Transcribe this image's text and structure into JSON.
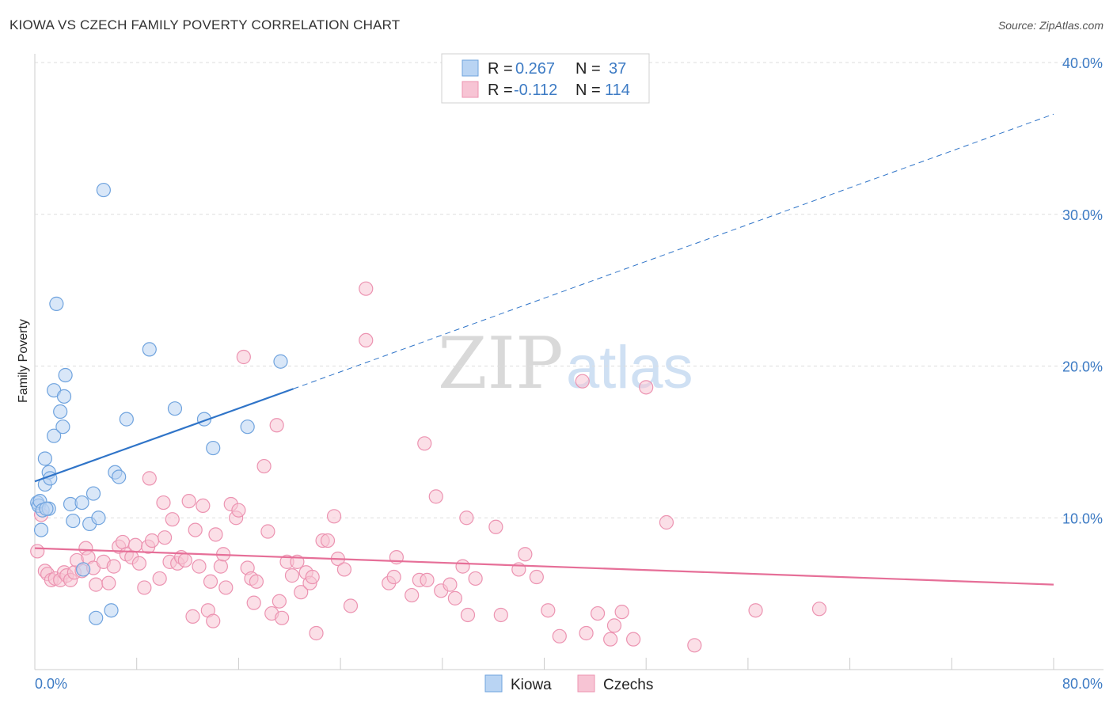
{
  "title": "KIOWA VS CZECH FAMILY POVERTY CORRELATION CHART",
  "source": "Source: ZipAtlas.com",
  "watermark": {
    "zip": "ZIP",
    "atlas": "atlas"
  },
  "colors": {
    "kiowa_fill": "#b9d4f3",
    "kiowa_stroke": "#6fa3de",
    "kiowa_line": "#2f74c8",
    "czech_fill": "#f7c4d4",
    "czech_stroke": "#ec93b1",
    "czech_line": "#e66f98",
    "tick": "#3d7bc4",
    "grid": "#dddddd"
  },
  "legend": {
    "r_label": "R =",
    "n_label": "N =",
    "kiowa_r": "0.267",
    "kiowa_n": "37",
    "czech_r": "-0.112",
    "czech_n": "114"
  },
  "chart_data": {
    "type": "scatter",
    "title": "KIOWA VS CZECH FAMILY POVERTY CORRELATION CHART",
    "xlabel": "",
    "ylabel": "Family Poverty",
    "xlim": [
      0,
      80
    ],
    "ylim": [
      0,
      40
    ],
    "x_ticks": [
      "0.0%",
      "80.0%"
    ],
    "y_ticks": [
      "10.0%",
      "20.0%",
      "30.0%",
      "40.0%"
    ],
    "y_tick_values": [
      10,
      20,
      30,
      40
    ],
    "grid": true,
    "legend_position": "top-center",
    "series": [
      {
        "name": "Kiowa",
        "r": 0.267,
        "n": 37,
        "trend": {
          "x": [
            0,
            20.3
          ],
          "y": [
            12.4,
            18.5
          ],
          "dashed_to": [
            80,
            36.6
          ]
        },
        "points": [
          [
            0.2,
            11.0
          ],
          [
            0.3,
            10.8
          ],
          [
            0.4,
            11.1
          ],
          [
            0.5,
            9.2
          ],
          [
            0.6,
            10.5
          ],
          [
            0.8,
            13.9
          ],
          [
            0.8,
            12.2
          ],
          [
            1.1,
            13.0
          ],
          [
            1.2,
            12.6
          ],
          [
            1.1,
            10.6
          ],
          [
            1.5,
            18.4
          ],
          [
            1.5,
            15.4
          ],
          [
            1.7,
            24.1
          ],
          [
            2.0,
            17.0
          ],
          [
            2.2,
            16.0
          ],
          [
            2.3,
            18.0
          ],
          [
            2.4,
            19.4
          ],
          [
            2.8,
            10.9
          ],
          [
            3.0,
            9.8
          ],
          [
            3.7,
            11.0
          ],
          [
            3.8,
            6.6
          ],
          [
            4.3,
            9.6
          ],
          [
            4.6,
            11.6
          ],
          [
            4.8,
            3.4
          ],
          [
            5.0,
            10.0
          ],
          [
            5.4,
            31.6
          ],
          [
            6.0,
            3.9
          ],
          [
            6.3,
            13.0
          ],
          [
            6.6,
            12.7
          ],
          [
            7.2,
            16.5
          ],
          [
            9.0,
            21.1
          ],
          [
            11.0,
            17.2
          ],
          [
            13.3,
            16.5
          ],
          [
            14.0,
            14.6
          ],
          [
            16.7,
            16.0
          ],
          [
            19.3,
            20.3
          ],
          [
            0.9,
            10.6
          ]
        ]
      },
      {
        "name": "Czechs",
        "r": -0.112,
        "n": 114,
        "trend": {
          "x": [
            0,
            80
          ],
          "y": [
            8.0,
            5.6
          ]
        },
        "points": [
          [
            0.2,
            7.8
          ],
          [
            0.5,
            10.2
          ],
          [
            0.8,
            6.5
          ],
          [
            1.0,
            6.3
          ],
          [
            1.3,
            5.9
          ],
          [
            1.6,
            6.0
          ],
          [
            2.0,
            5.9
          ],
          [
            2.3,
            6.4
          ],
          [
            2.5,
            6.2
          ],
          [
            2.8,
            5.9
          ],
          [
            3.1,
            6.4
          ],
          [
            3.3,
            7.2
          ],
          [
            3.7,
            6.5
          ],
          [
            4.0,
            8.0
          ],
          [
            4.2,
            7.4
          ],
          [
            4.6,
            6.7
          ],
          [
            4.8,
            5.6
          ],
          [
            5.4,
            7.1
          ],
          [
            5.8,
            5.7
          ],
          [
            6.2,
            6.8
          ],
          [
            6.6,
            8.1
          ],
          [
            6.9,
            8.4
          ],
          [
            7.2,
            7.6
          ],
          [
            7.6,
            7.4
          ],
          [
            7.9,
            8.2
          ],
          [
            8.2,
            7.0
          ],
          [
            8.6,
            5.4
          ],
          [
            8.9,
            8.1
          ],
          [
            9.2,
            8.5
          ],
          [
            9.0,
            12.6
          ],
          [
            9.8,
            6.0
          ],
          [
            10.2,
            8.7
          ],
          [
            10.1,
            11.0
          ],
          [
            10.6,
            7.1
          ],
          [
            10.8,
            9.9
          ],
          [
            11.2,
            7.0
          ],
          [
            11.5,
            7.4
          ],
          [
            11.8,
            7.2
          ],
          [
            12.1,
            11.1
          ],
          [
            12.4,
            3.5
          ],
          [
            12.6,
            9.2
          ],
          [
            12.9,
            6.8
          ],
          [
            13.2,
            10.8
          ],
          [
            13.6,
            3.9
          ],
          [
            13.8,
            5.8
          ],
          [
            14.0,
            3.2
          ],
          [
            14.2,
            8.9
          ],
          [
            14.6,
            6.8
          ],
          [
            14.8,
            7.6
          ],
          [
            15.0,
            5.4
          ],
          [
            15.4,
            10.9
          ],
          [
            15.8,
            10.0
          ],
          [
            16.0,
            10.5
          ],
          [
            16.4,
            20.6
          ],
          [
            16.7,
            6.7
          ],
          [
            17.0,
            6.0
          ],
          [
            17.2,
            4.4
          ],
          [
            17.4,
            5.8
          ],
          [
            18.0,
            13.4
          ],
          [
            18.3,
            9.1
          ],
          [
            18.6,
            3.7
          ],
          [
            19.0,
            16.1
          ],
          [
            19.2,
            4.5
          ],
          [
            19.4,
            3.4
          ],
          [
            19.8,
            7.1
          ],
          [
            20.2,
            6.2
          ],
          [
            20.6,
            7.1
          ],
          [
            20.9,
            5.1
          ],
          [
            21.3,
            6.4
          ],
          [
            21.6,
            5.7
          ],
          [
            21.8,
            6.1
          ],
          [
            22.1,
            2.4
          ],
          [
            22.6,
            8.5
          ],
          [
            23.0,
            8.5
          ],
          [
            23.5,
            10.1
          ],
          [
            23.8,
            7.3
          ],
          [
            24.3,
            6.6
          ],
          [
            24.8,
            4.2
          ],
          [
            26.0,
            21.7
          ],
          [
            26.0,
            25.1
          ],
          [
            27.8,
            5.7
          ],
          [
            28.4,
            7.4
          ],
          [
            28.2,
            6.1
          ],
          [
            29.6,
            4.9
          ],
          [
            30.2,
            5.9
          ],
          [
            30.6,
            14.9
          ],
          [
            30.8,
            5.9
          ],
          [
            31.5,
            11.4
          ],
          [
            31.9,
            5.2
          ],
          [
            32.6,
            5.6
          ],
          [
            33.0,
            4.7
          ],
          [
            33.6,
            6.8
          ],
          [
            33.9,
            10.0
          ],
          [
            34.0,
            3.6
          ],
          [
            34.6,
            6.0
          ],
          [
            36.2,
            9.4
          ],
          [
            36.6,
            3.6
          ],
          [
            38.0,
            6.6
          ],
          [
            38.5,
            7.6
          ],
          [
            39.4,
            6.1
          ],
          [
            40.3,
            3.9
          ],
          [
            41.2,
            2.2
          ],
          [
            43.0,
            19.0
          ],
          [
            43.3,
            2.4
          ],
          [
            44.2,
            3.7
          ],
          [
            45.2,
            2.0
          ],
          [
            45.5,
            2.9
          ],
          [
            46.1,
            3.8
          ],
          [
            47.0,
            2.0
          ],
          [
            48.0,
            18.6
          ],
          [
            49.6,
            9.7
          ],
          [
            51.8,
            1.6
          ],
          [
            56.6,
            3.9
          ],
          [
            61.6,
            4.0
          ]
        ]
      }
    ]
  }
}
